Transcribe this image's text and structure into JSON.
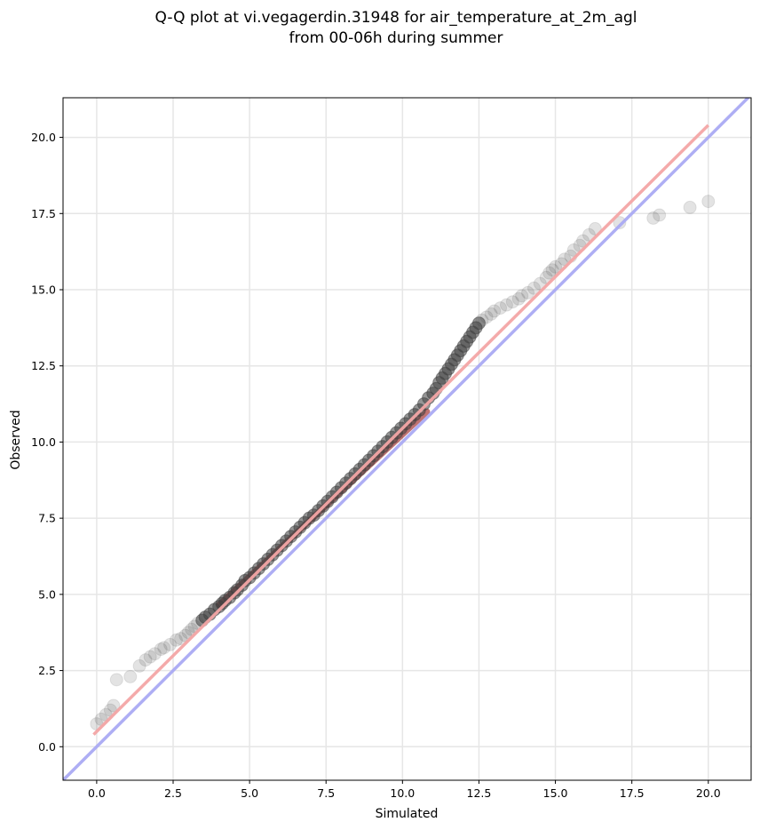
{
  "chart_data": {
    "type": "scatter",
    "title": [
      "Q-Q plot at vi.vegagerdin.31948 for air_temperature_at_2m_agl",
      "from 00-06h during summer"
    ],
    "xlabel": "Simulated",
    "ylabel": "Observed",
    "xlim": [
      -1.1,
      21.4
    ],
    "ylim": [
      -1.1,
      21.3
    ],
    "xticks": [
      "0.0",
      "2.5",
      "5.0",
      "7.5",
      "10.0",
      "12.5",
      "15.0",
      "17.5",
      "20.0"
    ],
    "yticks": [
      "0.0",
      "2.5",
      "5.0",
      "7.5",
      "10.0",
      "12.5",
      "15.0",
      "17.5",
      "20.0"
    ],
    "grid": true,
    "colors": {
      "points": "#404040",
      "fit_line": "#f4a6a6",
      "identity_line": "#aaaaf4",
      "inner_tint": "#8b0000"
    },
    "series": [
      {
        "kind": "points",
        "x": [
          0.0,
          0.15,
          0.3,
          0.45,
          0.55,
          0.65,
          1.1,
          1.4,
          1.6,
          1.75,
          1.9,
          2.1,
          2.2,
          2.4,
          2.6,
          2.75,
          2.9,
          3.0,
          3.1,
          3.2,
          3.3,
          3.45,
          3.55,
          3.7,
          3.85,
          4.0,
          4.1,
          4.2,
          4.35,
          4.5,
          4.6,
          4.75,
          4.85,
          5.0,
          5.15,
          5.3,
          5.45,
          5.6,
          5.75,
          5.9,
          6.05,
          6.2,
          6.35,
          6.5,
          6.65,
          6.8,
          6.95,
          7.1,
          7.25,
          7.4,
          7.55,
          7.7,
          7.85,
          8.0,
          8.15,
          8.3,
          8.45,
          8.6,
          8.75,
          8.9,
          9.05,
          9.2,
          9.35,
          9.5,
          9.65,
          9.8,
          9.95,
          10.1,
          10.25,
          10.4,
          10.55,
          10.7,
          10.85,
          11.0,
          11.1,
          11.2,
          11.3,
          11.4,
          11.5,
          11.6,
          11.7,
          11.8,
          11.9,
          12.0,
          12.1,
          12.2,
          12.3,
          12.4,
          12.5,
          12.6,
          12.75,
          12.9,
          13.0,
          13.2,
          13.4,
          13.6,
          13.8,
          13.9,
          14.1,
          14.3,
          14.5,
          14.7,
          14.8,
          14.9,
          15.0,
          15.2,
          15.3,
          15.5,
          15.6,
          15.8,
          15.9,
          16.1,
          16.3,
          17.1,
          18.2,
          18.4,
          19.4,
          20.0
        ],
        "y": [
          0.75,
          0.9,
          1.05,
          1.2,
          1.35,
          2.2,
          2.3,
          2.65,
          2.85,
          2.95,
          3.05,
          3.2,
          3.25,
          3.35,
          3.5,
          3.55,
          3.65,
          3.75,
          3.85,
          3.95,
          4.05,
          4.15,
          4.25,
          4.35,
          4.5,
          4.6,
          4.7,
          4.8,
          4.9,
          5.05,
          5.15,
          5.3,
          5.45,
          5.55,
          5.7,
          5.85,
          6.0,
          6.15,
          6.3,
          6.45,
          6.6,
          6.75,
          6.9,
          7.05,
          7.2,
          7.35,
          7.5,
          7.6,
          7.75,
          7.9,
          8.05,
          8.2,
          8.35,
          8.5,
          8.65,
          8.8,
          8.95,
          9.1,
          9.25,
          9.4,
          9.55,
          9.7,
          9.85,
          10.0,
          10.15,
          10.3,
          10.45,
          10.6,
          10.75,
          10.9,
          11.05,
          11.25,
          11.45,
          11.6,
          11.75,
          11.95,
          12.1,
          12.25,
          12.4,
          12.55,
          12.7,
          12.85,
          13.0,
          13.15,
          13.3,
          13.45,
          13.6,
          13.75,
          13.9,
          14.0,
          14.1,
          14.2,
          14.3,
          14.4,
          14.5,
          14.6,
          14.7,
          14.8,
          14.9,
          15.05,
          15.2,
          15.4,
          15.55,
          15.65,
          15.75,
          15.85,
          16.0,
          16.1,
          16.3,
          16.45,
          16.6,
          16.8,
          17.0,
          17.2,
          17.35,
          17.45,
          17.7,
          17.9
        ]
      },
      {
        "kind": "line",
        "role": "fit",
        "x": [
          -0.1,
          20.0
        ],
        "y": [
          0.4,
          20.4
        ]
      },
      {
        "kind": "line",
        "role": "identity",
        "x": [
          -1.1,
          21.4
        ],
        "y": [
          -1.1,
          21.4
        ]
      }
    ]
  }
}
